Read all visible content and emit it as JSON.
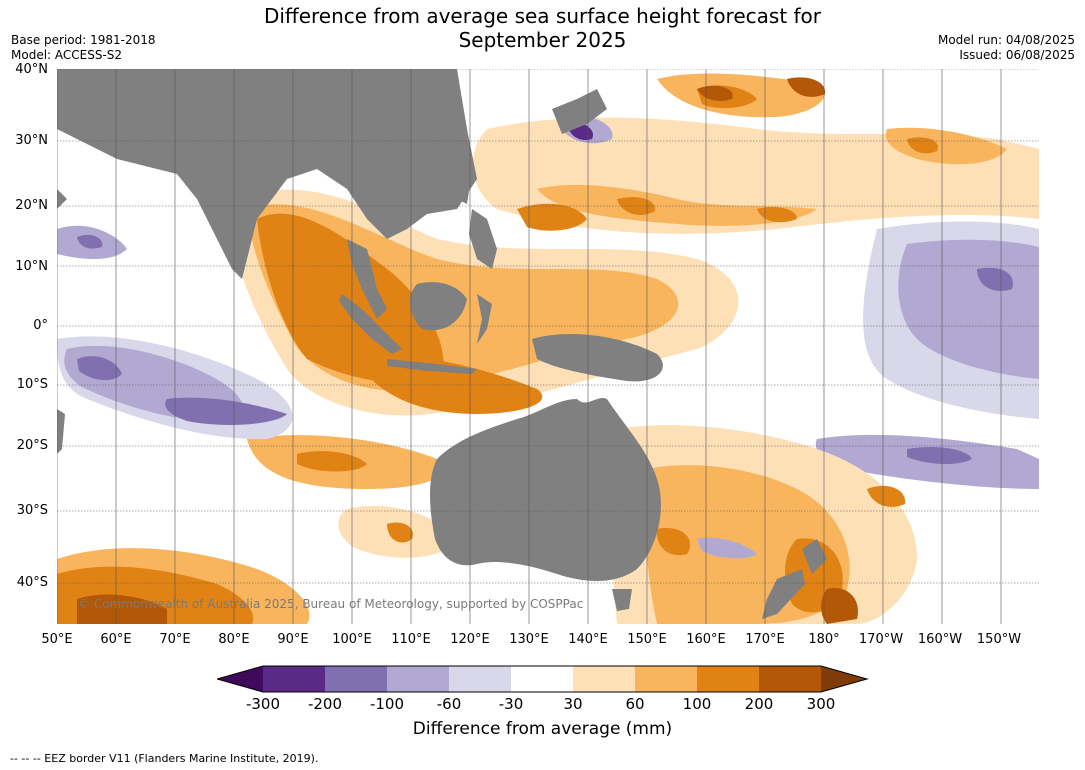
{
  "title_line1": "Difference from average sea surface height forecast for",
  "title_line2": "September 2025",
  "meta_left": {
    "base_period": "Base period: 1981-2018",
    "model": "Model: ACCESS-S2"
  },
  "meta_right": {
    "model_run": "Model run: 04/08/2025",
    "issued": "Issued: 06/08/2025"
  },
  "lat_labels": [
    "40°N",
    "30°N",
    "20°N",
    "10°N",
    "0°",
    "10°S",
    "20°S",
    "30°S",
    "40°S"
  ],
  "lon_labels": [
    "50°E",
    "60°E",
    "70°E",
    "80°E",
    "90°E",
    "100°E",
    "110°E",
    "120°E",
    "130°E",
    "140°E",
    "150°E",
    "160°E",
    "170°E",
    "180°",
    "170°W",
    "160°W",
    "150°W"
  ],
  "credit": "© Commonwealth of Australia 2025, Bureau of Meteorology, supported by COSPPac",
  "colorbar": {
    "ticks": [
      "-300",
      "-200",
      "-100",
      "-60",
      "-30",
      "30",
      "60",
      "100",
      "200",
      "300"
    ],
    "colors": [
      "#3f0a5b",
      "#5a2a86",
      "#8070b0",
      "#b1a9d2",
      "#d8d8ea",
      "#ffffff",
      "#fee0b6",
      "#f8b55e",
      "#e08214",
      "#b35806",
      "#7f3b08"
    ],
    "label": "Difference from average (mm)"
  },
  "eez_note": "--  --  -- EEZ border V11 (Flanders Marine Institute, 2019)."
}
